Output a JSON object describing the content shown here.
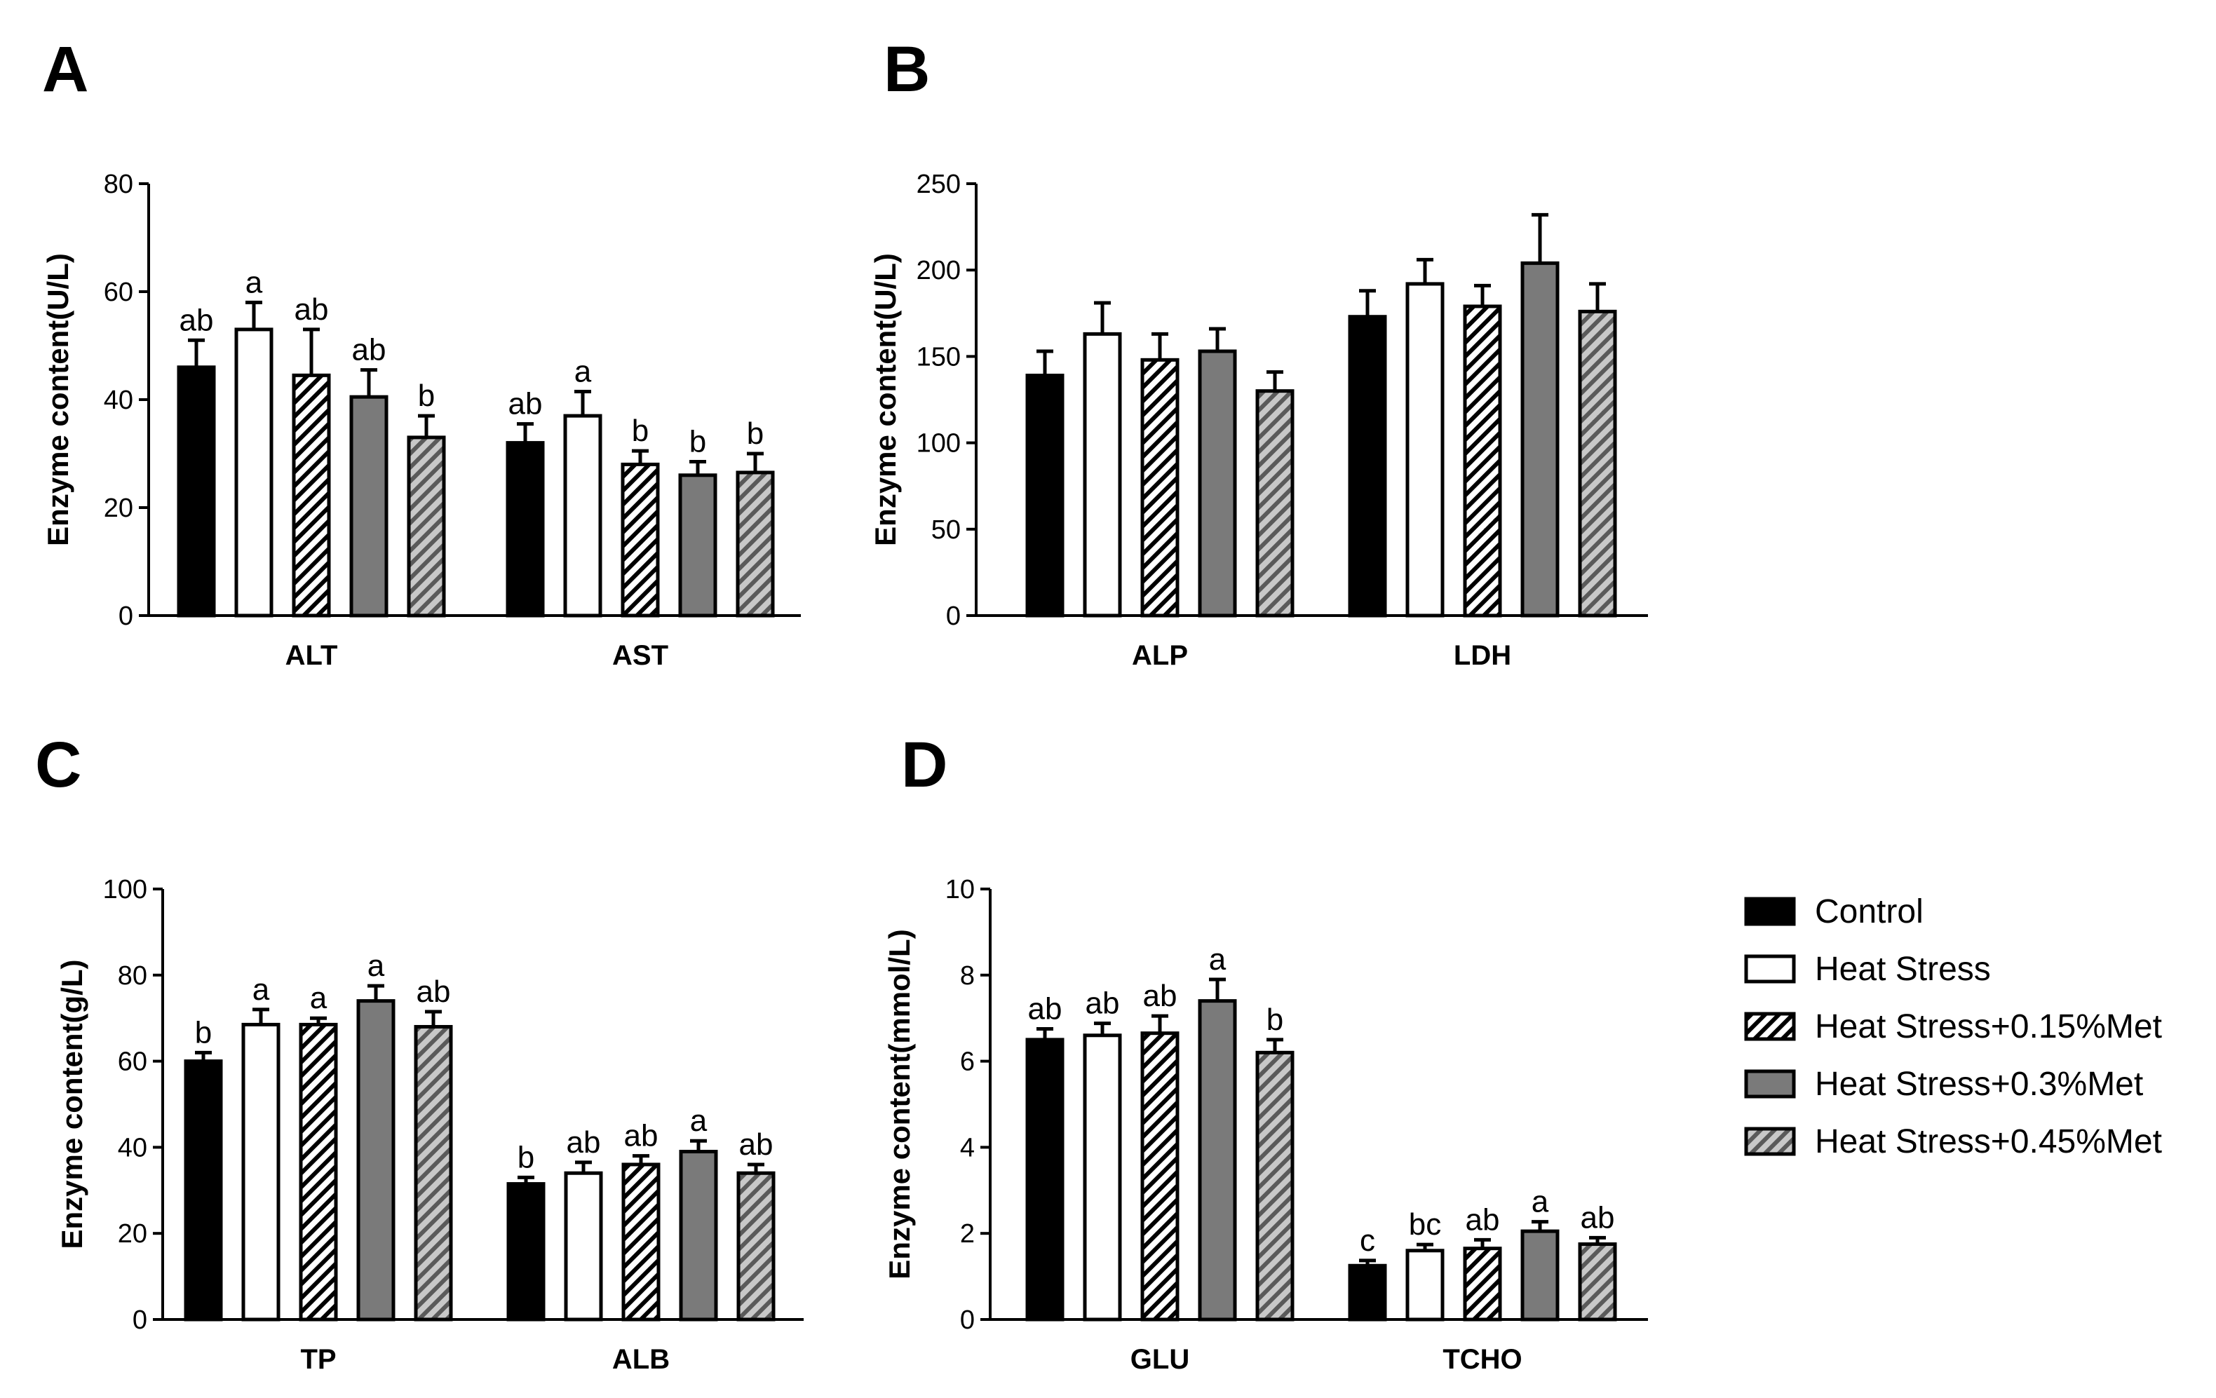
{
  "figure": {
    "legend": [
      {
        "label": "Control",
        "fill": "solid-black"
      },
      {
        "label": "Heat Stress",
        "fill": "white"
      },
      {
        "label": "Heat Stress+0.15%Met",
        "fill": "white-hatched"
      },
      {
        "label": "Heat Stress+0.3%Met",
        "fill": "solid-gray"
      },
      {
        "label": "Heat Stress+0.45%Met",
        "fill": "gray-hatched"
      }
    ],
    "colors": {
      "black": "#000000",
      "gray": "#7a7a7a",
      "hatch_gray": "#9a9a9a",
      "white": "#ffffff"
    }
  },
  "chart_data": [
    {
      "panel": "A",
      "type": "bar",
      "ylabel": "Enzyme content(U/L)",
      "ylim": [
        0,
        80
      ],
      "yticks": [
        0,
        20,
        40,
        60,
        80
      ],
      "categories": [
        "ALT",
        "AST"
      ],
      "series": [
        {
          "name": "Control",
          "values": [
            46,
            32
          ],
          "errors": [
            5,
            3.5
          ],
          "labels": [
            "ab",
            "ab"
          ]
        },
        {
          "name": "Heat Stress",
          "values": [
            53,
            37
          ],
          "errors": [
            5,
            4.5
          ],
          "labels": [
            "a",
            "a"
          ]
        },
        {
          "name": "Heat Stress+0.15%Met",
          "values": [
            44.5,
            28
          ],
          "errors": [
            8.5,
            2.5
          ],
          "labels": [
            "ab",
            "b"
          ]
        },
        {
          "name": "Heat Stress+0.3%Met",
          "values": [
            40.5,
            26
          ],
          "errors": [
            5,
            2.5
          ],
          "labels": [
            "ab",
            "b"
          ]
        },
        {
          "name": "Heat Stress+0.45%Met",
          "values": [
            33,
            26.5
          ],
          "errors": [
            4,
            3.5
          ],
          "labels": [
            "b",
            "b"
          ]
        }
      ]
    },
    {
      "panel": "B",
      "type": "bar",
      "ylabel": "Enzyme content(U/L)",
      "ylim": [
        0,
        250
      ],
      "yticks": [
        0,
        50,
        100,
        150,
        200,
        250
      ],
      "categories": [
        "ALP",
        "LDH"
      ],
      "series": [
        {
          "name": "Control",
          "values": [
            139,
            173
          ],
          "errors": [
            14,
            15
          ],
          "labels": [
            "",
            ""
          ]
        },
        {
          "name": "Heat Stress",
          "values": [
            163,
            192
          ],
          "errors": [
            18,
            14
          ],
          "labels": [
            "",
            ""
          ]
        },
        {
          "name": "Heat Stress+0.15%Met",
          "values": [
            148,
            179
          ],
          "errors": [
            15,
            12
          ],
          "labels": [
            "",
            ""
          ]
        },
        {
          "name": "Heat Stress+0.3%Met",
          "values": [
            153,
            204
          ],
          "errors": [
            13,
            28
          ],
          "labels": [
            "",
            ""
          ]
        },
        {
          "name": "Heat Stress+0.45%Met",
          "values": [
            130,
            176
          ],
          "errors": [
            11,
            16
          ],
          "labels": [
            "",
            ""
          ]
        }
      ]
    },
    {
      "panel": "C",
      "type": "bar",
      "ylabel": "Enzyme content(g/L)",
      "ylim": [
        0,
        100
      ],
      "yticks": [
        0,
        20,
        40,
        60,
        80,
        100
      ],
      "categories": [
        "TP",
        "ALB"
      ],
      "series": [
        {
          "name": "Control",
          "values": [
            60,
            31.5
          ],
          "errors": [
            2,
            1.5
          ],
          "labels": [
            "b",
            "b"
          ]
        },
        {
          "name": "Heat Stress",
          "values": [
            68.5,
            34
          ],
          "errors": [
            3.5,
            2.5
          ],
          "labels": [
            "a",
            "ab"
          ]
        },
        {
          "name": "Heat Stress+0.15%Met",
          "values": [
            68.5,
            36
          ],
          "errors": [
            1.5,
            2
          ],
          "labels": [
            "a",
            "ab"
          ]
        },
        {
          "name": "Heat Stress+0.3%Met",
          "values": [
            74,
            39
          ],
          "errors": [
            3.5,
            2.5
          ],
          "labels": [
            "a",
            "a"
          ]
        },
        {
          "name": "Heat Stress+0.45%Met",
          "values": [
            68,
            34
          ],
          "errors": [
            3.5,
            2
          ],
          "labels": [
            "ab",
            "ab"
          ]
        }
      ]
    },
    {
      "panel": "D",
      "type": "bar",
      "ylabel": "Enzyme content(mmol/L)",
      "ylim": [
        0,
        10
      ],
      "yticks": [
        0,
        2,
        4,
        6,
        8,
        10
      ],
      "categories": [
        "GLU",
        "TCHO"
      ],
      "series": [
        {
          "name": "Control",
          "values": [
            6.5,
            1.25
          ],
          "errors": [
            0.25,
            0.12
          ],
          "labels": [
            "ab",
            "c"
          ]
        },
        {
          "name": "Heat Stress",
          "values": [
            6.6,
            1.6
          ],
          "errors": [
            0.28,
            0.14
          ],
          "labels": [
            "ab",
            "bc"
          ]
        },
        {
          "name": "Heat Stress+0.15%Met",
          "values": [
            6.65,
            1.65
          ],
          "errors": [
            0.4,
            0.2
          ],
          "labels": [
            "ab",
            "ab"
          ]
        },
        {
          "name": "Heat Stress+0.3%Met",
          "values": [
            7.4,
            2.05
          ],
          "errors": [
            0.5,
            0.22
          ],
          "labels": [
            "a",
            "a"
          ]
        },
        {
          "name": "Heat Stress+0.45%Met",
          "values": [
            6.2,
            1.75
          ],
          "errors": [
            0.3,
            0.15
          ],
          "labels": [
            "b",
            "ab"
          ]
        }
      ]
    }
  ]
}
